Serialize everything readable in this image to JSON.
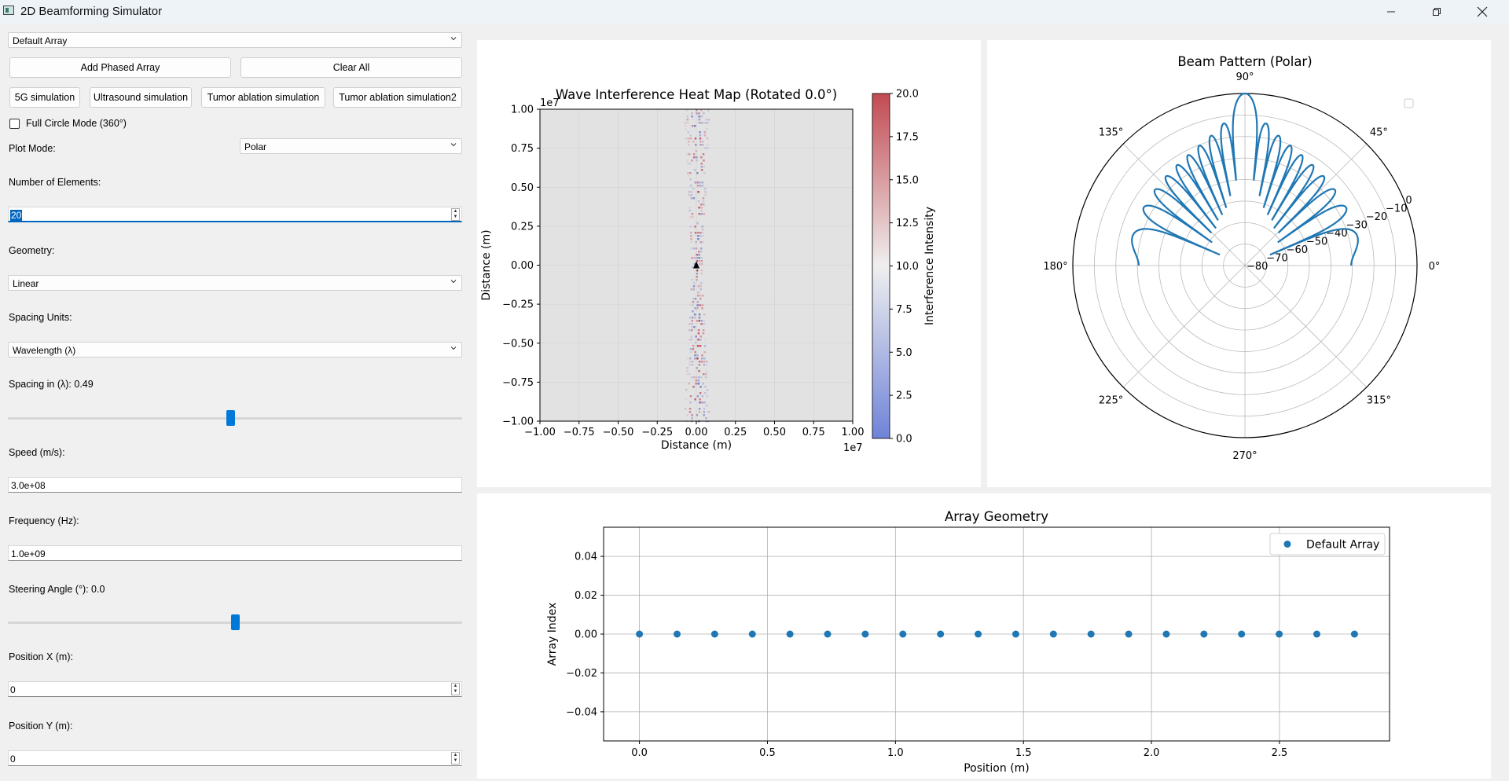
{
  "window": {
    "title": "2D Beamforming Simulator"
  },
  "controls": {
    "array_select": "Default Array",
    "add_button": "Add Phased Array",
    "clear_button": "Clear All",
    "presets": [
      "5G simulation",
      "Ultrasound simulation",
      "Tumor ablation simulation",
      "Tumor ablation simulation2"
    ],
    "full_circle_label": "Full Circle Mode (360°)",
    "full_circle_checked": false,
    "plot_mode_label": "Plot Mode:",
    "plot_mode_value": "Polar",
    "num_elements_label": "Number of Elements:",
    "num_elements_value": "20",
    "geometry_label": "Geometry:",
    "geometry_value": "Linear",
    "spacing_units_label": "Spacing Units:",
    "spacing_units_value": "Wavelength (λ)",
    "spacing_label": "Spacing in (λ): 0.49",
    "spacing_slider_fraction": 0.49,
    "speed_label": "Speed (m/s):",
    "speed_value": "3.0e+08",
    "frequency_label": "Frequency (Hz):",
    "frequency_value": "1.0e+09",
    "steering_label": "Steering Angle (°): 0.0",
    "steering_slider_fraction": 0.5,
    "pos_x_label": "Position X (m):",
    "pos_x_value": "0",
    "pos_y_label": "Position Y (m):",
    "pos_y_value": "0"
  },
  "chart_data": [
    {
      "type": "heatmap",
      "title": "Wave Interference Heat Map (Rotated 0.0°)",
      "xlabel": "Distance (m)",
      "ylabel": "Distance (m)",
      "xlim": [
        -1.0,
        1.0
      ],
      "ylim": [
        -1.0,
        1.0
      ],
      "axis_scale_label": "1e7",
      "xticks": [
        "−1.00",
        "−0.75",
        "−0.50",
        "−0.25",
        "0.00",
        "0.25",
        "0.50",
        "0.75",
        "1.00"
      ],
      "yticks": [
        "1.00",
        "0.75",
        "0.50",
        "0.25",
        "0.00",
        "−0.25",
        "−0.50",
        "−0.75",
        "−1.00"
      ],
      "colorbar_label": "Interference Intensity",
      "colorbar_ticks": [
        "20.0",
        "17.5",
        "15.0",
        "12.5",
        "10.0",
        "7.5",
        "5.0",
        "2.5",
        "0.0"
      ],
      "colormap": [
        "#3b4cc0",
        "#dddddd",
        "#b40426"
      ],
      "array_marker": {
        "x": 0.0,
        "y": 0.0
      },
      "grid": true
    },
    {
      "type": "line",
      "title": "Beam Pattern (Polar)",
      "projection": "polar",
      "angle_labels": [
        "0°",
        "45°",
        "90°",
        "135°",
        "180°",
        "225°",
        "270°",
        "315°"
      ],
      "radial_ticks": [
        "0",
        "−10",
        "−20",
        "−30",
        "−40",
        "−50",
        "−60",
        "−70",
        "−80"
      ],
      "radial_range_db": [
        -80,
        0
      ],
      "main_lobe_deg": 90,
      "num_elements": 20,
      "spacing_lambda": 0.49,
      "color": "#1f77b4",
      "grid": true
    },
    {
      "type": "scatter",
      "title": "Array Geometry",
      "xlabel": "Position (m)",
      "ylabel": "Array Index",
      "xlim": [
        -0.14,
        2.93
      ],
      "ylim": [
        -0.055,
        0.055
      ],
      "xticks": [
        "0.0",
        "0.5",
        "1.0",
        "1.5",
        "2.0",
        "2.5"
      ],
      "yticks": [
        "0.04",
        "0.02",
        "0.00",
        "−0.02",
        "−0.04"
      ],
      "series": [
        {
          "name": "Default Array",
          "x": [
            0.0,
            0.147,
            0.294,
            0.441,
            0.588,
            0.735,
            0.882,
            1.029,
            1.176,
            1.323,
            1.47,
            1.617,
            1.764,
            1.911,
            2.058,
            2.205,
            2.352,
            2.499,
            2.646,
            2.793
          ],
          "y": [
            0,
            0,
            0,
            0,
            0,
            0,
            0,
            0,
            0,
            0,
            0,
            0,
            0,
            0,
            0,
            0,
            0,
            0,
            0,
            0
          ]
        }
      ],
      "legend": "top-right",
      "color": "#1f77b4",
      "grid": true
    }
  ]
}
